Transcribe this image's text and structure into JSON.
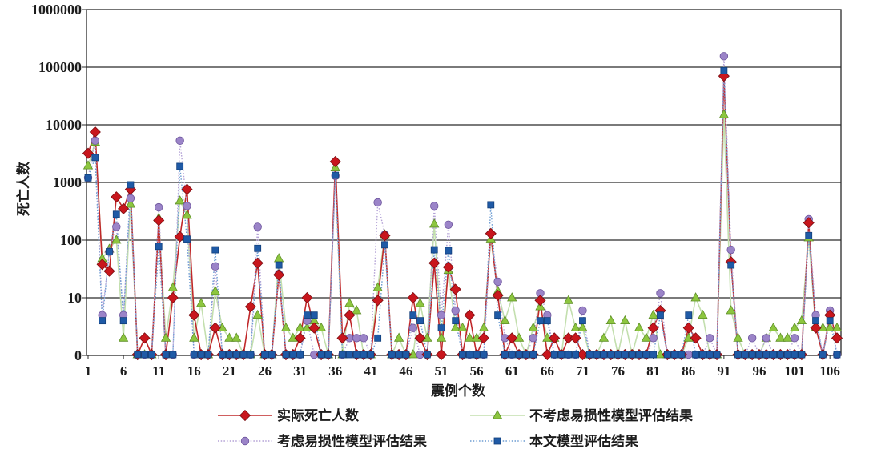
{
  "chart_data": {
    "type": "line",
    "xlabel": "震例个数",
    "ylabel": "死亡人数",
    "y_scale": "log",
    "xlim": [
      1,
      107
    ],
    "ylim": [
      0,
      1000000
    ],
    "x_ticks": [
      "1",
      "6",
      "11",
      "16",
      "21",
      "26",
      "31",
      "36",
      "41",
      "46",
      "51",
      "56",
      "61",
      "66",
      "71",
      "76",
      "81",
      "86",
      "91",
      "96",
      "101",
      "106"
    ],
    "y_ticks": [
      "0",
      "10",
      "100",
      "1000",
      "10000",
      "100000",
      "1000000"
    ],
    "grid": "horizontal",
    "legend_position": "bottom",
    "series": [
      {
        "name": "实际死亡人数",
        "marker": "diamond",
        "line_style": "solid",
        "color": "#c8161d",
        "line_color": "#c0282a",
        "values": [
          3200,
          7500,
          38,
          29,
          560,
          350,
          760,
          0,
          2,
          0,
          220,
          0,
          10,
          115,
          760,
          5,
          0,
          0,
          3,
          0,
          0,
          0,
          0,
          7,
          40,
          0,
          0,
          25,
          0,
          0,
          2,
          10,
          3,
          0,
          0,
          2300,
          2,
          5,
          0,
          0,
          0,
          9,
          120,
          0,
          0,
          0,
          10,
          2,
          0,
          40,
          0,
          34,
          14,
          0,
          5,
          0,
          2,
          130,
          11,
          0,
          2,
          0,
          0,
          0,
          9,
          0,
          2,
          0,
          2,
          2,
          0,
          0,
          0,
          0,
          0,
          0,
          0,
          0,
          0,
          0,
          3,
          6,
          0,
          0,
          0,
          3,
          2,
          0,
          0,
          0,
          70000,
          42,
          0,
          0,
          0,
          0,
          0,
          0,
          0,
          0,
          0,
          0,
          200,
          3,
          0,
          5,
          2
        ]
      },
      {
        "name": "不考虑易损性模型评估结果",
        "marker": "triangle",
        "line_style": "solid",
        "color": "#8dc63f",
        "line_color": "#c3dfae",
        "values": [
          1950,
          5000,
          48,
          70,
          100,
          2,
          420,
          0,
          0,
          0,
          240,
          2,
          15,
          480,
          270,
          2,
          8,
          0,
          13,
          3,
          2,
          2,
          0,
          0,
          5,
          0,
          0,
          48,
          3,
          2,
          3,
          3,
          4,
          3,
          0,
          1800,
          0,
          8,
          6,
          0,
          0,
          15,
          125,
          0,
          2,
          0,
          0,
          8,
          2,
          190,
          2,
          30,
          3,
          3,
          2,
          2,
          3,
          105,
          13,
          4,
          10,
          2,
          0,
          3,
          7,
          2,
          2,
          0,
          9,
          3,
          3,
          0,
          0,
          2,
          4,
          0,
          4,
          0,
          3,
          2,
          5,
          0,
          0,
          0,
          0,
          2,
          10,
          5,
          0,
          0,
          15000,
          6,
          2,
          0,
          0,
          0,
          2,
          3,
          2,
          2,
          3,
          4,
          110,
          3,
          3,
          3,
          3
        ]
      },
      {
        "name": "考虑易损性模型评估结果",
        "marker": "circle",
        "line_style": "dotted",
        "color": "#9b84c8",
        "line_color": "#b3a1d6",
        "values": [
          1200,
          5300,
          5,
          63,
          170,
          5,
          530,
          0,
          0,
          0,
          370,
          0,
          0,
          5300,
          390,
          0,
          0,
          0,
          35,
          0,
          0,
          0,
          0,
          0,
          170,
          0,
          0,
          26,
          0,
          0,
          0,
          4,
          0,
          0,
          0,
          1300,
          0,
          2,
          2,
          2,
          0,
          450,
          125,
          0,
          0,
          0,
          3,
          0,
          0,
          390,
          5,
          185,
          6,
          0,
          0,
          0,
          0,
          130,
          19,
          2,
          0,
          0,
          0,
          2,
          12,
          5,
          0,
          0,
          0,
          0,
          6,
          0,
          0,
          0,
          0,
          0,
          0,
          0,
          0,
          0,
          2,
          12,
          0,
          0,
          0,
          0,
          0,
          0,
          2,
          0,
          155000,
          68,
          0,
          0,
          2,
          0,
          2,
          0,
          0,
          0,
          2,
          0,
          230,
          5,
          0,
          6,
          0
        ]
      },
      {
        "name": "本文模型评估结果",
        "marker": "square",
        "line_style": "dotted",
        "color": "#1f5aa6",
        "line_color": "#6b9bd2",
        "values": [
          1200,
          2700,
          4,
          63,
          280,
          4,
          910,
          0,
          0,
          0,
          78,
          0,
          0,
          1900,
          104,
          0,
          0,
          0,
          68,
          0,
          0,
          0,
          0,
          0,
          72,
          0,
          0,
          37,
          0,
          0,
          0,
          5,
          5,
          0,
          0,
          1330,
          0,
          0,
          0,
          0,
          0,
          2,
          83,
          0,
          0,
          0,
          5,
          4,
          0,
          68,
          3,
          66,
          4,
          0,
          0,
          0,
          0,
          410,
          5,
          0,
          0,
          0,
          0,
          0,
          4,
          4,
          0,
          0,
          0,
          0,
          4,
          0,
          0,
          0,
          0,
          0,
          0,
          0,
          0,
          0,
          0,
          5,
          0,
          0,
          0,
          5,
          0,
          0,
          0,
          0,
          87000,
          37,
          0,
          0,
          0,
          0,
          0,
          0,
          0,
          0,
          0,
          0,
          120,
          4,
          0,
          4,
          0
        ]
      }
    ]
  }
}
